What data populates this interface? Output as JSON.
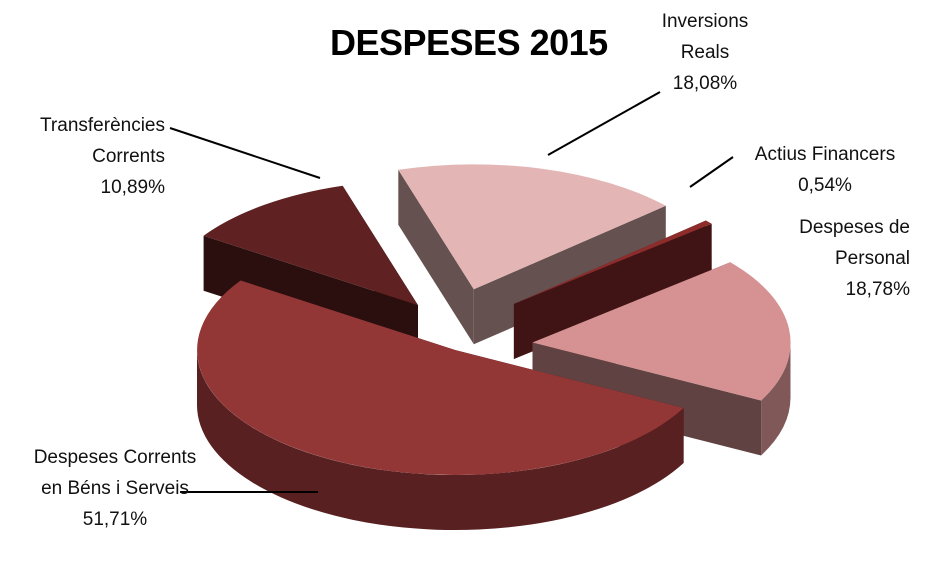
{
  "chart_data": {
    "type": "pie",
    "title": "DESPESES 2015",
    "categories": [
      "Inversions Reals",
      "Actius Financers",
      "Despeses de Personal",
      "Despeses Corrents en Béns i Serveis",
      "Transferències Corrents"
    ],
    "values": [
      18.08,
      0.54,
      18.78,
      51.71,
      10.89
    ],
    "value_labels": [
      "18,08%",
      "0,54%",
      "18,78%",
      "51,71%",
      "10,89%"
    ],
    "colors": [
      "#e3b5b5",
      "#8e2c2c",
      "#d69292",
      "#933636",
      "#5f2121"
    ]
  }
}
